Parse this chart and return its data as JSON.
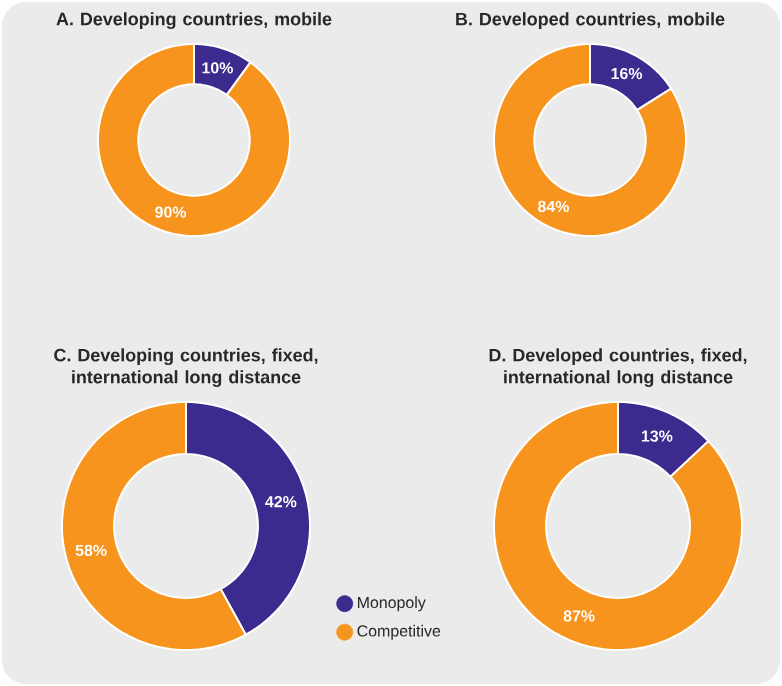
{
  "chart_data": [
    {
      "type": "donut",
      "title": "A. Developing countries, mobile",
      "categories": [
        null,
        null
      ],
      "values": [
        10,
        90
      ],
      "colors": [
        "#3c2a8e",
        "#f7941d"
      ],
      "value_labels": [
        "10%",
        "90%"
      ]
    },
    {
      "type": "donut",
      "title": "B. Developed countries, mobile",
      "categories": [
        null,
        null
      ],
      "values": [
        16,
        84
      ],
      "colors": [
        "#3c2a8e",
        "#f7941d"
      ],
      "value_labels": [
        "16%",
        "84%"
      ]
    },
    {
      "type": "donut",
      "title": "C. Developing countries, fixed, international long distance",
      "categories": [
        null,
        null
      ],
      "values": [
        42,
        58
      ],
      "colors": [
        "#3c2a8e",
        "#f7941d"
      ],
      "value_labels": [
        "42%",
        "58%"
      ]
    },
    {
      "type": "donut",
      "title": "D. Developed countries, fixed, international long distance",
      "categories": [
        "Monopoly",
        "Competitive"
      ],
      "values": [
        13,
        87
      ],
      "colors": [
        "#3c2a8e",
        "#f7941d"
      ],
      "value_labels": [
        "13%",
        "87%"
      ],
      "legend": "bottom left"
    }
  ]
}
